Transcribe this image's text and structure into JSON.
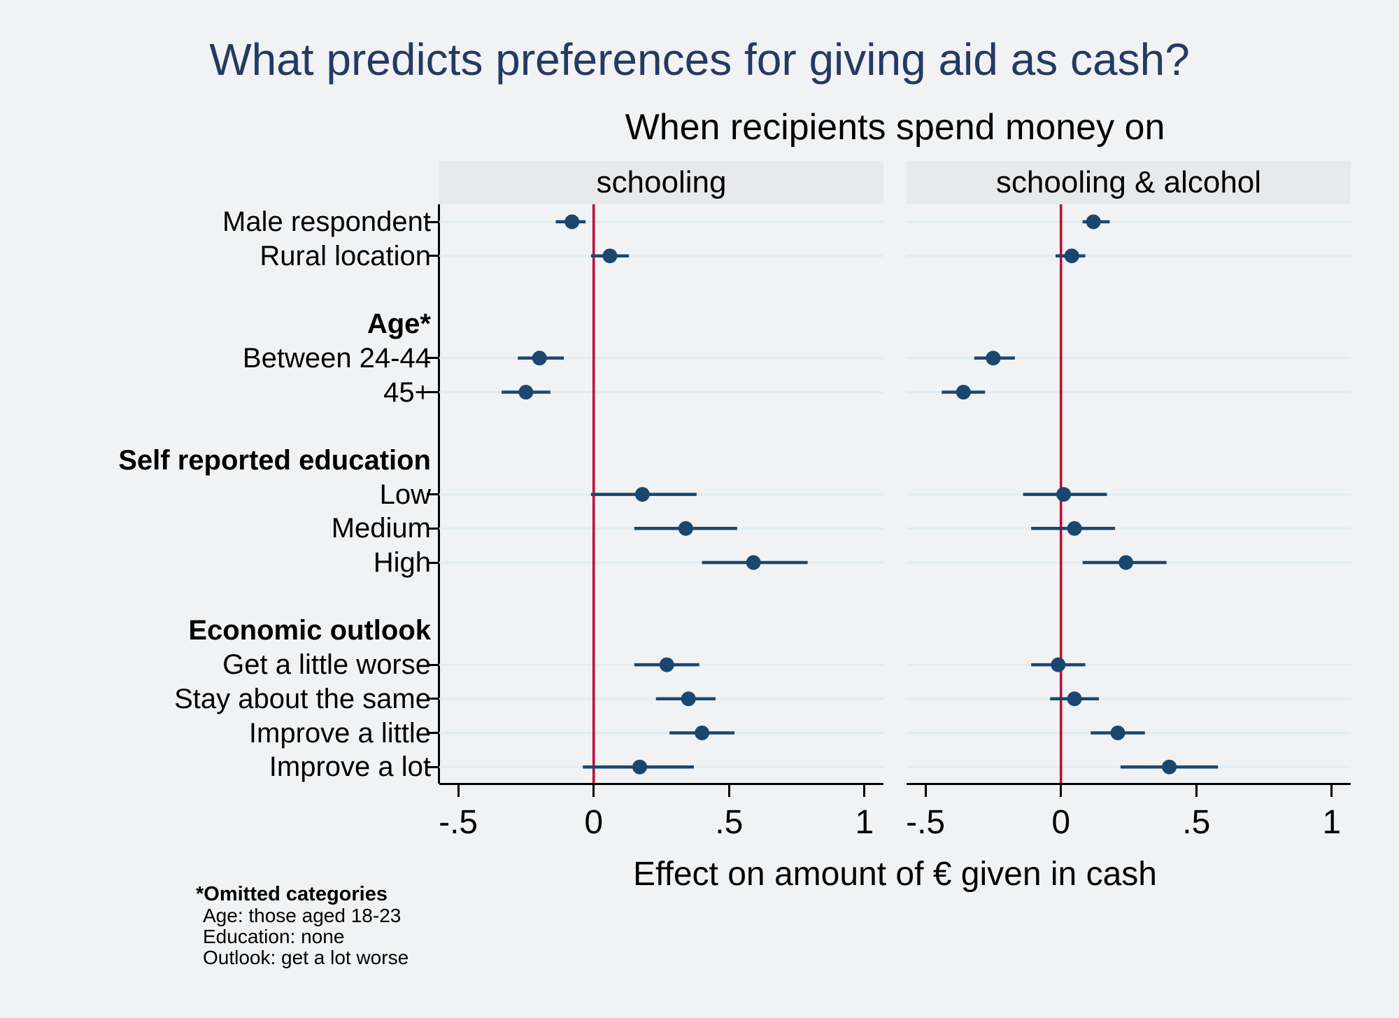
{
  "title": "What predicts preferences for giving aid as cash?",
  "subtitle": "When recipients spend money on",
  "xaxis_title": "Effect on amount of € given in cash",
  "footnote": {
    "heading": "*Omitted categories",
    "lines": [
      "Age: those aged 18-23",
      "Education: none",
      "Outlook: get a lot worse"
    ]
  },
  "colors": {
    "background": "#f1f2f3",
    "title": "#243a62",
    "panel_header_bg": "#e8e9eb",
    "gridline": "#e0edf2",
    "marker": "#1a476f",
    "zero_line": "#c10534",
    "axis": "#000000"
  },
  "chart_data": {
    "type": "scatter",
    "variant": "coefficient-dot-whisker",
    "xlim": [
      -0.57,
      1.07
    ],
    "xticks": [
      {
        "value": -0.5,
        "label": "-.5"
      },
      {
        "value": 0,
        "label": "0"
      },
      {
        "value": 0.5,
        "label": ".5"
      },
      {
        "value": 1,
        "label": "1"
      }
    ],
    "zero_line": 0,
    "grid": true,
    "rows": [
      {
        "kind": "coef",
        "label": "Male respondent"
      },
      {
        "kind": "coef",
        "label": "Rural location"
      },
      {
        "kind": "gap",
        "label": ""
      },
      {
        "kind": "header",
        "label": "Age*"
      },
      {
        "kind": "coef",
        "label": "Between 24-44"
      },
      {
        "kind": "coef",
        "label": "45+"
      },
      {
        "kind": "gap",
        "label": ""
      },
      {
        "kind": "header",
        "label": "Self reported education"
      },
      {
        "kind": "coef",
        "label": "Low"
      },
      {
        "kind": "coef",
        "label": "Medium"
      },
      {
        "kind": "coef",
        "label": "High"
      },
      {
        "kind": "gap",
        "label": ""
      },
      {
        "kind": "header",
        "label": "Economic outlook"
      },
      {
        "kind": "coef",
        "label": "Get a little worse"
      },
      {
        "kind": "coef",
        "label": "Stay about the same"
      },
      {
        "kind": "coef",
        "label": "Improve a little"
      },
      {
        "kind": "coef",
        "label": "Improve a lot"
      }
    ],
    "panels": [
      {
        "label": "schooling",
        "estimates": [
          {
            "row": "Male respondent",
            "est": -0.08,
            "lo": -0.14,
            "hi": -0.03
          },
          {
            "row": "Rural location",
            "est": 0.06,
            "lo": -0.01,
            "hi": 0.13
          },
          {
            "row": "Between 24-44",
            "est": -0.2,
            "lo": -0.28,
            "hi": -0.11
          },
          {
            "row": "45+",
            "est": -0.25,
            "lo": -0.34,
            "hi": -0.16
          },
          {
            "row": "Low",
            "est": 0.18,
            "lo": -0.01,
            "hi": 0.38
          },
          {
            "row": "Medium",
            "est": 0.34,
            "lo": 0.15,
            "hi": 0.53
          },
          {
            "row": "High",
            "est": 0.59,
            "lo": 0.4,
            "hi": 0.79
          },
          {
            "row": "Get a little worse",
            "est": 0.27,
            "lo": 0.15,
            "hi": 0.39
          },
          {
            "row": "Stay about the same",
            "est": 0.35,
            "lo": 0.23,
            "hi": 0.45
          },
          {
            "row": "Improve a little",
            "est": 0.4,
            "lo": 0.28,
            "hi": 0.52
          },
          {
            "row": "Improve a lot",
            "est": 0.17,
            "lo": -0.04,
            "hi": 0.37
          }
        ]
      },
      {
        "label": "schooling & alcohol",
        "estimates": [
          {
            "row": "Male respondent",
            "est": 0.12,
            "lo": 0.08,
            "hi": 0.18
          },
          {
            "row": "Rural location",
            "est": 0.04,
            "lo": -0.02,
            "hi": 0.09
          },
          {
            "row": "Between 24-44",
            "est": -0.25,
            "lo": -0.32,
            "hi": -0.17
          },
          {
            "row": "45+",
            "est": -0.36,
            "lo": -0.44,
            "hi": -0.28
          },
          {
            "row": "Low",
            "est": 0.01,
            "lo": -0.14,
            "hi": 0.17
          },
          {
            "row": "Medium",
            "est": 0.05,
            "lo": -0.11,
            "hi": 0.2
          },
          {
            "row": "High",
            "est": 0.24,
            "lo": 0.08,
            "hi": 0.39
          },
          {
            "row": "Get a little worse",
            "est": -0.01,
            "lo": -0.11,
            "hi": 0.09
          },
          {
            "row": "Stay about the same",
            "est": 0.05,
            "lo": -0.04,
            "hi": 0.14
          },
          {
            "row": "Improve a little",
            "est": 0.21,
            "lo": 0.11,
            "hi": 0.31
          },
          {
            "row": "Improve a lot",
            "est": 0.4,
            "lo": 0.22,
            "hi": 0.58
          }
        ]
      }
    ]
  }
}
